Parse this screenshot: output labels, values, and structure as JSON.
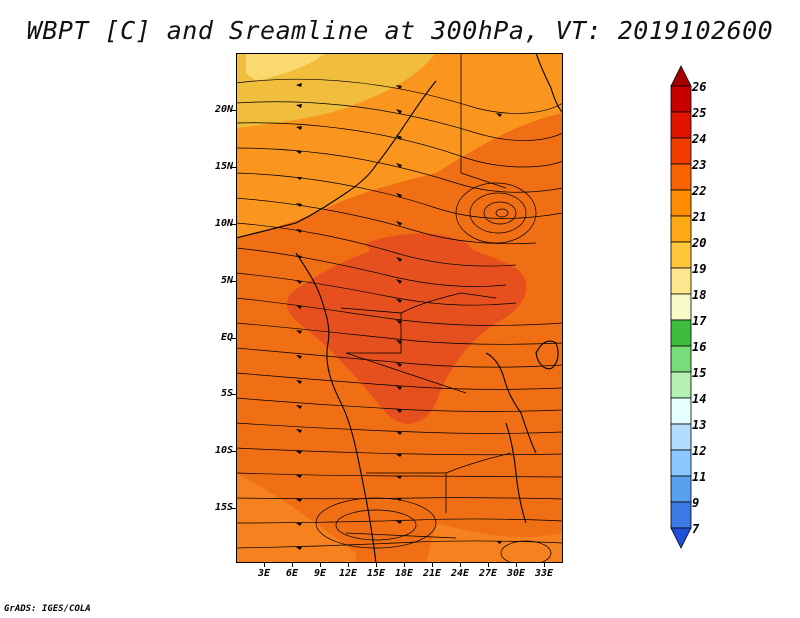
{
  "title": "WBPT [C] and Sreamline at 300hPa, VT: 2019102600",
  "credit": "GrADS: IGES/COLA",
  "map": {
    "lat_labels": [
      "20N",
      "15N",
      "10N",
      "5N",
      "EQ",
      "5S",
      "10S",
      "15S"
    ],
    "lon_labels": [
      "3E",
      "6E",
      "9E",
      "12E",
      "15E",
      "18E",
      "21E",
      "24E",
      "27E",
      "30E",
      "33E"
    ]
  },
  "colorbar": {
    "labels": [
      "26",
      "25",
      "24",
      "23",
      "22",
      "21",
      "20",
      "19",
      "18",
      "17",
      "16",
      "15",
      "14",
      "13",
      "12",
      "11",
      "9",
      "7"
    ],
    "colors": [
      "#a50000",
      "#c80000",
      "#e11400",
      "#f03c00",
      "#fa6400",
      "#ff8c00",
      "#ffaa14",
      "#ffc83c",
      "#ffe68c",
      "#fafac8",
      "#3cbe3c",
      "#78dc78",
      "#b4f0b4",
      "#e6ffff",
      "#b4dcff",
      "#8cc8ff",
      "#5aa0f0",
      "#3c78e6",
      "#1e50dc"
    ]
  },
  "colors": {
    "field_main": "#f06e14",
    "field_dark": "#e6501e",
    "field_light": "#fa961e",
    "field_yellow": "#f0be3c",
    "streamline": "#000000"
  }
}
